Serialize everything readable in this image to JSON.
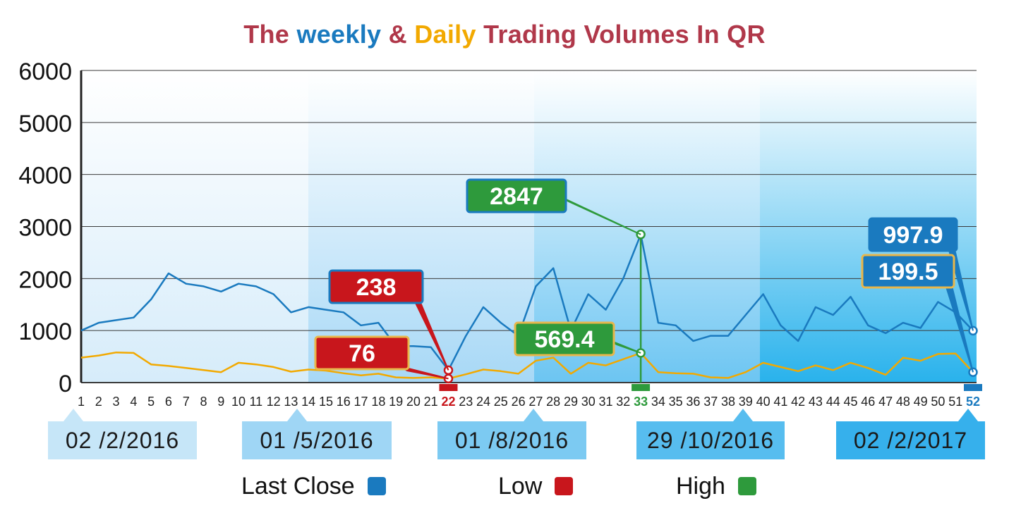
{
  "title": {
    "part1": "The ",
    "part2": "weekly",
    "part3": " & ",
    "part4": "Daily",
    "part5": " Trading Volumes In QR"
  },
  "colors": {
    "last_close": "#1a7abf",
    "low": "#c8161c",
    "high": "#2e9a3c",
    "daily_line": "#f2a900",
    "title_red": "#b0384a"
  },
  "chart_data": {
    "type": "line",
    "title": "The weekly & Daily Trading Volumes In QR",
    "xlabel": "",
    "ylabel": "",
    "ylim": [
      0,
      6000
    ],
    "yticks": [
      0,
      1000,
      2000,
      3000,
      4000,
      5000,
      6000
    ],
    "grid": true,
    "x": [
      1,
      2,
      3,
      4,
      5,
      6,
      7,
      8,
      9,
      10,
      11,
      12,
      13,
      14,
      15,
      16,
      17,
      18,
      19,
      20,
      21,
      22,
      23,
      24,
      25,
      26,
      27,
      28,
      29,
      30,
      31,
      32,
      33,
      34,
      35,
      36,
      37,
      38,
      39,
      40,
      41,
      42,
      43,
      44,
      45,
      46,
      47,
      48,
      49,
      50,
      51,
      52
    ],
    "highlighted_weeks": [
      {
        "week": 22,
        "role": "Low"
      },
      {
        "week": 33,
        "role": "High"
      },
      {
        "week": 52,
        "role": "Last Close"
      }
    ],
    "series": [
      {
        "name": "weekly",
        "values": [
          1000,
          1150,
          1200,
          1250,
          1600,
          2100,
          1900,
          1850,
          1750,
          1900,
          1850,
          1700,
          1350,
          1450,
          1400,
          1350,
          1100,
          1150,
          700,
          700,
          680,
          238,
          900,
          1450,
          1150,
          900,
          1850,
          2200,
          1000,
          1700,
          1400,
          2000,
          2847,
          1150,
          1100,
          800,
          900,
          900,
          1300,
          1700,
          1100,
          800,
          1450,
          1300,
          1650,
          1100,
          950,
          1150,
          1050,
          1550,
          1350,
          997.9
        ]
      },
      {
        "name": "Daily",
        "values": [
          480,
          520,
          580,
          570,
          350,
          320,
          280,
          240,
          200,
          380,
          350,
          300,
          210,
          250,
          230,
          180,
          140,
          170,
          100,
          90,
          100,
          76,
          160,
          250,
          220,
          170,
          420,
          480,
          170,
          380,
          330,
          450,
          569.4,
          200,
          180,
          170,
          100,
          90,
          200,
          380,
          300,
          220,
          330,
          240,
          380,
          280,
          150,
          480,
          420,
          550,
          560,
          199.5
        ]
      }
    ],
    "annotations": [
      {
        "label": "238",
        "week": 22,
        "value": 238,
        "color": "#c8161c"
      },
      {
        "label": "76",
        "week": 22,
        "value": 76,
        "color": "#c8161c"
      },
      {
        "label": "2847",
        "week": 33,
        "value": 2847,
        "color": "#2e9a3c"
      },
      {
        "label": "569.4",
        "week": 33,
        "value": 569.4,
        "color": "#2e9a3c"
      },
      {
        "label": "997.9",
        "week": 52,
        "value": 997.9,
        "color": "#1a7abf"
      },
      {
        "label": "199.5",
        "week": 52,
        "value": 199.5,
        "color": "#1a7abf"
      }
    ],
    "date_markers": [
      {
        "label": "02 /2/2016",
        "week": 1
      },
      {
        "label": "01 /5/2016",
        "week": 14
      },
      {
        "label": "01 /8/2016",
        "week": 27
      },
      {
        "label": "29 /10/2016",
        "week": 40
      },
      {
        "label": "02 /2/2017",
        "week": 52
      }
    ],
    "legend": [
      {
        "label": "Last Close",
        "color": "#1a7abf"
      },
      {
        "label": "Low",
        "color": "#c8161c"
      },
      {
        "label": "High",
        "color": "#2e9a3c"
      }
    ],
    "legend_position": "bottom"
  }
}
